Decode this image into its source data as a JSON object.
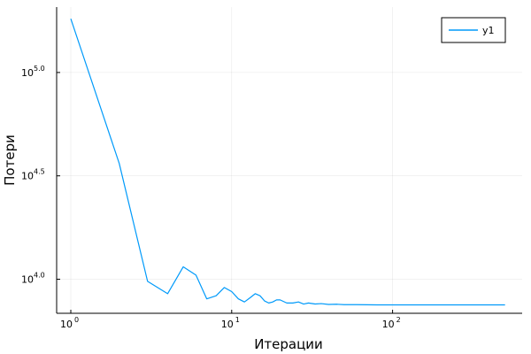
{
  "chart_data": {
    "type": "line",
    "title": "",
    "xlabel": "Итерации",
    "ylabel": "Потери",
    "xscale": "log10",
    "yscale": "log10",
    "xlim": [
      1,
      500
    ],
    "ylim_log10": [
      3.87,
      5.26
    ],
    "grid": true,
    "legend_position": "top-right",
    "x_ticks": [
      {
        "value": 1,
        "base": "10",
        "exp": "0"
      },
      {
        "value": 10,
        "base": "10",
        "exp": "1"
      },
      {
        "value": 100,
        "base": "10",
        "exp": "2"
      }
    ],
    "y_ticks": [
      {
        "value": 5.0,
        "base": "10",
        "exp": "5.0"
      },
      {
        "value": 4.5,
        "base": "10",
        "exp": "4.5"
      },
      {
        "value": 4.0,
        "base": "10",
        "exp": "4.0"
      }
    ],
    "series": [
      {
        "name": "y1",
        "color": "#009AFA",
        "x": [
          1,
          2,
          3,
          4,
          5,
          6,
          7,
          8,
          9,
          10,
          11,
          12,
          13,
          14,
          15,
          16,
          17,
          18,
          19,
          20,
          22,
          24,
          26,
          28,
          30,
          33,
          36,
          40,
          45,
          50,
          60,
          80,
          100,
          150,
          200,
          300,
          500
        ],
        "log10_y": [
          5.26,
          4.56,
          3.99,
          3.93,
          4.06,
          4.02,
          3.905,
          3.92,
          3.96,
          3.94,
          3.905,
          3.89,
          3.91,
          3.93,
          3.92,
          3.895,
          3.885,
          3.89,
          3.9,
          3.9,
          3.885,
          3.885,
          3.89,
          3.88,
          3.885,
          3.88,
          3.882,
          3.878,
          3.879,
          3.877,
          3.877,
          3.876,
          3.876,
          3.876,
          3.876,
          3.876,
          3.876
        ]
      }
    ]
  }
}
